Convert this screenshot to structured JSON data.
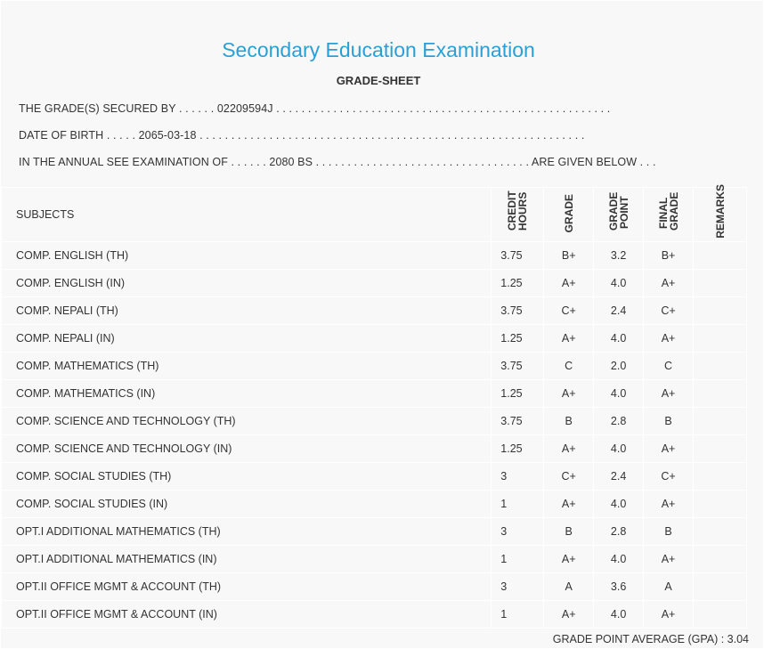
{
  "title": "Secondary Education Examination",
  "subtitle": "GRADE-SHEET",
  "info": {
    "secured_by": "THE GRADE(S) SECURED BY . . . . . . 02209594J . . . . . . . . . . . . . . . . . . . . . . . . . . . . . . . . . . . . . . . . . . . . . . . . . . . . .",
    "dob": "DATE OF BIRTH . . . . . 2065-03-18 . . . . . . . . . . . . . . . . . . . . . . . . . . . . . . . . . . . . . . . . . . . . . . . . . . . . . . . . . . . . .",
    "exam": "IN THE ANNUAL SEE EXAMINATION OF . . . . . . 2080 BS . . . . . . . . . . . . . . . . . . . . . . . . . . . . . . . . . . ARE GIVEN BELOW . . ."
  },
  "headers": {
    "subjects": "SUBJECTS",
    "credit": "CREDIT HOURS",
    "grade": "GRADE",
    "gp": "GRADE POINT",
    "final": "FINAL GRADE",
    "remarks": "REMARKS"
  },
  "rows": [
    {
      "s": "COMP. ENGLISH (TH)",
      "ch": "3.75",
      "g": "B+",
      "gp": "3.2",
      "f": "B+"
    },
    {
      "s": "COMP. ENGLISH (IN)",
      "ch": "1.25",
      "g": "A+",
      "gp": "4.0",
      "f": "A+"
    },
    {
      "s": "COMP. NEPALI (TH)",
      "ch": "3.75",
      "g": "C+",
      "gp": "2.4",
      "f": "C+"
    },
    {
      "s": "COMP. NEPALI (IN)",
      "ch": "1.25",
      "g": "A+",
      "gp": "4.0",
      "f": "A+"
    },
    {
      "s": "COMP. MATHEMATICS (TH)",
      "ch": "3.75",
      "g": "C",
      "gp": "2.0",
      "f": "C"
    },
    {
      "s": "COMP. MATHEMATICS (IN)",
      "ch": "1.25",
      "g": "A+",
      "gp": "4.0",
      "f": "A+"
    },
    {
      "s": "COMP. SCIENCE AND TECHNOLOGY (TH)",
      "ch": "3.75",
      "g": "B",
      "gp": "2.8",
      "f": "B"
    },
    {
      "s": "COMP. SCIENCE AND TECHNOLOGY (IN)",
      "ch": "1.25",
      "g": "A+",
      "gp": "4.0",
      "f": "A+"
    },
    {
      "s": "COMP. SOCIAL STUDIES (TH)",
      "ch": "3",
      "g": "C+",
      "gp": "2.4",
      "f": "C+"
    },
    {
      "s": "COMP. SOCIAL STUDIES (IN)",
      "ch": "1",
      "g": "A+",
      "gp": "4.0",
      "f": "A+"
    },
    {
      "s": "OPT.I ADDITIONAL MATHEMATICS (TH)",
      "ch": "3",
      "g": "B",
      "gp": "2.8",
      "f": "B"
    },
    {
      "s": "OPT.I ADDITIONAL MATHEMATICS (IN)",
      "ch": "1",
      "g": "A+",
      "gp": "4.0",
      "f": "A+"
    },
    {
      "s": "OPT.II OFFICE MGMT & ACCOUNT (TH)",
      "ch": "3",
      "g": "A",
      "gp": "3.6",
      "f": "A"
    },
    {
      "s": "OPT.II OFFICE MGMT & ACCOUNT (IN)",
      "ch": "1",
      "g": "A+",
      "gp": "4.0",
      "f": "A+"
    }
  ],
  "gpa": "GRADE POINT AVERAGE (GPA) : 3.04"
}
